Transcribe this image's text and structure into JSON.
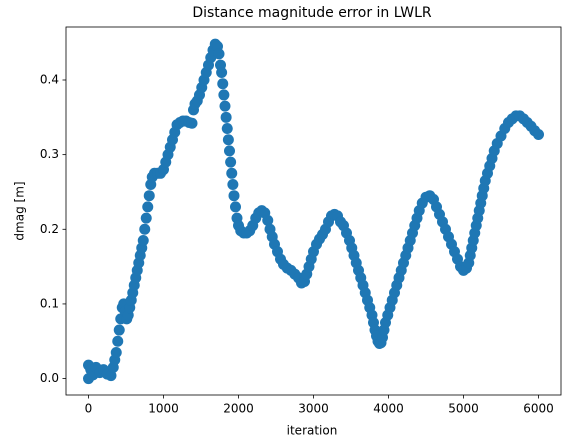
{
  "chart_data": {
    "type": "scatter",
    "title": "Distance magnitude error in LWLR",
    "x_label": "iteration",
    "y_label": "dmag [m]",
    "color": "#1f77b4",
    "x": [
      0,
      0,
      30,
      60,
      100,
      150,
      200,
      250,
      300,
      330,
      350,
      370,
      390,
      410,
      430,
      450,
      470,
      490,
      510,
      530,
      550,
      570,
      590,
      610,
      630,
      650,
      670,
      690,
      710,
      730,
      750,
      770,
      790,
      810,
      830,
      850,
      880,
      920,
      960,
      1000,
      1030,
      1060,
      1090,
      1120,
      1150,
      1180,
      1220,
      1260,
      1300,
      1340,
      1380,
      1400,
      1420,
      1450,
      1480,
      1510,
      1540,
      1570,
      1600,
      1630,
      1660,
      1690,
      1720,
      1740,
      1760,
      1775,
      1790,
      1805,
      1820,
      1835,
      1850,
      1865,
      1880,
      1895,
      1910,
      1925,
      1940,
      1960,
      1980,
      2000,
      2030,
      2070,
      2110,
      2150,
      2190,
      2230,
      2270,
      2310,
      2350,
      2390,
      2420,
      2450,
      2480,
      2520,
      2560,
      2600,
      2650,
      2700,
      2750,
      2800,
      2840,
      2880,
      2910,
      2940,
      2970,
      3000,
      3040,
      3080,
      3120,
      3160,
      3200,
      3240,
      3280,
      3320,
      3360,
      3400,
      3440,
      3480,
      3510,
      3540,
      3570,
      3600,
      3630,
      3660,
      3690,
      3720,
      3750,
      3780,
      3800,
      3820,
      3840,
      3860,
      3880,
      3900,
      3920,
      3940,
      3960,
      3990,
      4020,
      4050,
      4080,
      4110,
      4140,
      4170,
      4200,
      4230,
      4260,
      4290,
      4320,
      4350,
      4380,
      4410,
      4450,
      4500,
      4550,
      4600,
      4640,
      4680,
      4720,
      4760,
      4800,
      4840,
      4880,
      4920,
      4960,
      5000,
      5040,
      5070,
      5090,
      5110,
      5130,
      5150,
      5170,
      5190,
      5210,
      5230,
      5250,
      5270,
      5290,
      5320,
      5350,
      5380,
      5410,
      5450,
      5500,
      5550,
      5600,
      5650,
      5700,
      5750,
      5800,
      5850,
      5900,
      5950,
      6000
    ],
    "values": [
      0.0,
      0.018,
      0.012,
      0.005,
      0.015,
      0.008,
      0.012,
      0.006,
      0.004,
      0.015,
      0.025,
      0.035,
      0.05,
      0.065,
      0.08,
      0.095,
      0.1,
      0.09,
      0.08,
      0.085,
      0.095,
      0.105,
      0.115,
      0.125,
      0.135,
      0.145,
      0.155,
      0.165,
      0.175,
      0.185,
      0.2,
      0.215,
      0.23,
      0.245,
      0.26,
      0.27,
      0.275,
      0.275,
      0.275,
      0.28,
      0.29,
      0.3,
      0.31,
      0.32,
      0.33,
      0.34,
      0.343,
      0.345,
      0.345,
      0.343,
      0.342,
      0.36,
      0.368,
      0.372,
      0.38,
      0.39,
      0.4,
      0.41,
      0.42,
      0.43,
      0.44,
      0.448,
      0.445,
      0.435,
      0.42,
      0.41,
      0.395,
      0.38,
      0.365,
      0.35,
      0.335,
      0.32,
      0.305,
      0.29,
      0.275,
      0.26,
      0.245,
      0.23,
      0.215,
      0.205,
      0.198,
      0.195,
      0.195,
      0.198,
      0.205,
      0.215,
      0.222,
      0.225,
      0.222,
      0.212,
      0.2,
      0.19,
      0.18,
      0.17,
      0.16,
      0.153,
      0.148,
      0.145,
      0.14,
      0.135,
      0.128,
      0.13,
      0.14,
      0.15,
      0.16,
      0.17,
      0.18,
      0.187,
      0.193,
      0.2,
      0.21,
      0.218,
      0.22,
      0.218,
      0.21,
      0.205,
      0.195,
      0.185,
      0.175,
      0.165,
      0.155,
      0.145,
      0.135,
      0.125,
      0.115,
      0.105,
      0.095,
      0.085,
      0.075,
      0.065,
      0.057,
      0.05,
      0.047,
      0.048,
      0.055,
      0.065,
      0.075,
      0.085,
      0.095,
      0.105,
      0.115,
      0.125,
      0.135,
      0.145,
      0.155,
      0.165,
      0.175,
      0.185,
      0.195,
      0.205,
      0.215,
      0.225,
      0.235,
      0.243,
      0.245,
      0.24,
      0.23,
      0.22,
      0.21,
      0.2,
      0.19,
      0.18,
      0.17,
      0.16,
      0.15,
      0.145,
      0.148,
      0.155,
      0.165,
      0.175,
      0.185,
      0.195,
      0.205,
      0.215,
      0.225,
      0.235,
      0.245,
      0.255,
      0.265,
      0.275,
      0.285,
      0.295,
      0.305,
      0.315,
      0.325,
      0.335,
      0.343,
      0.348,
      0.352,
      0.352,
      0.348,
      0.343,
      0.338,
      0.332,
      0.327
    ],
    "xlim": [
      -300,
      6300
    ],
    "ylim": [
      -0.022,
      0.471
    ],
    "xticks": [
      0,
      1000,
      2000,
      3000,
      4000,
      5000,
      6000
    ],
    "yticks": [
      {
        "value": 0,
        "label": "0.0"
      },
      0.1,
      0.2,
      0.3,
      0.4
    ]
  }
}
